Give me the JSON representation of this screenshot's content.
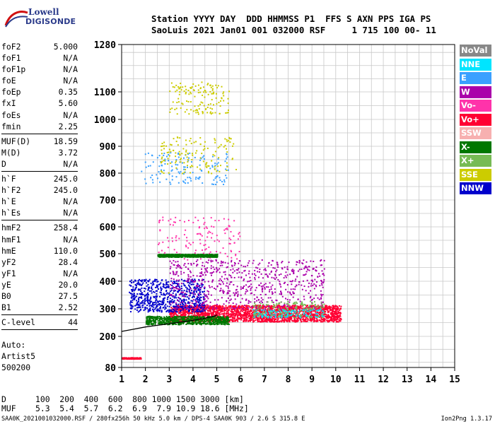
{
  "logo": {
    "line1": "Lowell",
    "line2": "DIGISONDE"
  },
  "header": {
    "line1": "Station YYYY DAY  DDD HHMMSS P1  FFS S AXN PPS IGA PS",
    "line2": "SaoLuis 2021 Jan01 001 032000 RSF     1 715 100 00- 11"
  },
  "params": {
    "g1": [
      {
        "k": "foF2",
        "v": "5.000"
      },
      {
        "k": "foF1",
        "v": "N/A"
      },
      {
        "k": "foF1p",
        "v": "N/A"
      },
      {
        "k": "foE",
        "v": "N/A"
      },
      {
        "k": "foEp",
        "v": "0.35"
      },
      {
        "k": "fxI",
        "v": "5.60"
      },
      {
        "k": "foEs",
        "v": "N/A"
      },
      {
        "k": "fmin",
        "v": "2.25"
      }
    ],
    "g2": [
      {
        "k": "MUF(D)",
        "v": "18.59"
      },
      {
        "k": "M(D)",
        "v": "3.72"
      },
      {
        "k": "D",
        "v": "N/A"
      }
    ],
    "g3": [
      {
        "k": "h`F",
        "v": "245.0"
      },
      {
        "k": "h`F2",
        "v": "245.0"
      },
      {
        "k": "h`E",
        "v": "N/A"
      },
      {
        "k": "h`Es",
        "v": "N/A"
      }
    ],
    "g4": [
      {
        "k": "hmF2",
        "v": "258.4"
      },
      {
        "k": "hmF1",
        "v": "N/A"
      },
      {
        "k": "hmE",
        "v": "110.0"
      },
      {
        "k": "yF2",
        "v": "28.4"
      },
      {
        "k": "yF1",
        "v": "N/A"
      },
      {
        "k": "yE",
        "v": "20.0"
      },
      {
        "k": "B0",
        "v": "27.5"
      },
      {
        "k": "B1",
        "v": "2.52"
      }
    ],
    "g5": [
      {
        "k": "C-level",
        "v": "44"
      }
    ]
  },
  "auto": {
    "line1": "Auto:",
    "line2": "Artist5",
    "line3": "500200"
  },
  "legend": [
    {
      "label": "NoVal",
      "color": "#888888"
    },
    {
      "label": "NNE",
      "color": "#00e5ff"
    },
    {
      "label": "E",
      "color": "#3aa0ff"
    },
    {
      "label": "W",
      "color": "#aa00aa"
    },
    {
      "label": "Vo-",
      "color": "#ff33aa"
    },
    {
      "label": "Vo+",
      "color": "#ff0033"
    },
    {
      "label": "SSW",
      "color": "#f7b0b0"
    },
    {
      "label": "X-",
      "color": "#007700"
    },
    {
      "label": "X+",
      "color": "#77bb55"
    },
    {
      "label": "SSE",
      "color": "#cccc00"
    },
    {
      "label": "NNW",
      "color": "#0000cc"
    }
  ],
  "muf_table": {
    "line1": "D      100  200  400  600  800 1000 1500 3000 [km]",
    "line2": "MUF    5.3  5.4  5.7  6.2  6.9  7.9 10.9 18.6 [MHz]"
  },
  "footer": {
    "left": "SAA0K_2021001032000.RSF / 280fx256h 50 kHz 5.0 km / DPS-4 SAA0K 903 / 2.6 S 315.8 E",
    "right": "Ion2Png 1.3.17"
  },
  "chart_data": {
    "type": "scatter",
    "title": "",
    "xlabel": "",
    "ylabel": "",
    "xlim": [
      1,
      15
    ],
    "ylim": [
      80,
      1280
    ],
    "y_scale": "ionogram-nonlinear",
    "x_ticks": [
      1,
      2,
      3,
      4,
      5,
      6,
      7,
      8,
      9,
      10,
      11,
      12,
      13,
      14,
      15
    ],
    "y_ticks": [
      80,
      200,
      300,
      400,
      500,
      600,
      700,
      800,
      900,
      1000,
      1100,
      1280
    ],
    "grid": true,
    "legend_placement": "right",
    "trace_curve": {
      "name": "",
      "x": [
        1.0,
        1.5,
        2.0,
        2.5,
        3.0,
        3.5,
        4.0,
        4.5,
        4.95,
        5.0
      ],
      "y": [
        218,
        226,
        234,
        240,
        246,
        252,
        258,
        266,
        275,
        279
      ]
    },
    "clusters": [
      {
        "series": "Vo+",
        "x": [
          3.0,
          10.2
        ],
        "y": [
          255,
          315
        ],
        "density": "high"
      },
      {
        "series": "X-",
        "x": [
          2.0,
          5.5
        ],
        "y": [
          245,
          275
        ],
        "density": "medium"
      },
      {
        "series": "NNW",
        "x": [
          1.3,
          4.5
        ],
        "y": [
          290,
          410
        ],
        "density": "medium"
      },
      {
        "series": "W",
        "x": [
          3.0,
          9.5
        ],
        "y": [
          300,
          480
        ],
        "density": "medium"
      },
      {
        "series": "NNE",
        "x": [
          6.5,
          9.5
        ],
        "y": [
          270,
          300
        ],
        "density": "low"
      },
      {
        "series": "X+",
        "x": [
          6.5,
          9.5
        ],
        "y": [
          270,
          330
        ],
        "density": "low"
      },
      {
        "series": "Vo-",
        "x": [
          2.5,
          6.0
        ],
        "y": [
          480,
          640
        ],
        "density": "low"
      },
      {
        "series": "X-",
        "x": [
          2.5,
          5.0
        ],
        "y": [
          490,
          500
        ],
        "density": "medium"
      },
      {
        "series": "E",
        "x": [
          1.8,
          5.5
        ],
        "y": [
          760,
          880
        ],
        "density": "low"
      },
      {
        "series": "SSE",
        "x": [
          2.6,
          5.8
        ],
        "y": [
          800,
          940
        ],
        "density": "low"
      },
      {
        "series": "SSE",
        "x": [
          3.0,
          5.5
        ],
        "y": [
          1020,
          1140
        ],
        "density": "low"
      },
      {
        "series": "Vo+",
        "x": [
          1.0,
          1.8
        ],
        "y": [
          115,
          120
        ],
        "density": "low"
      }
    ]
  }
}
